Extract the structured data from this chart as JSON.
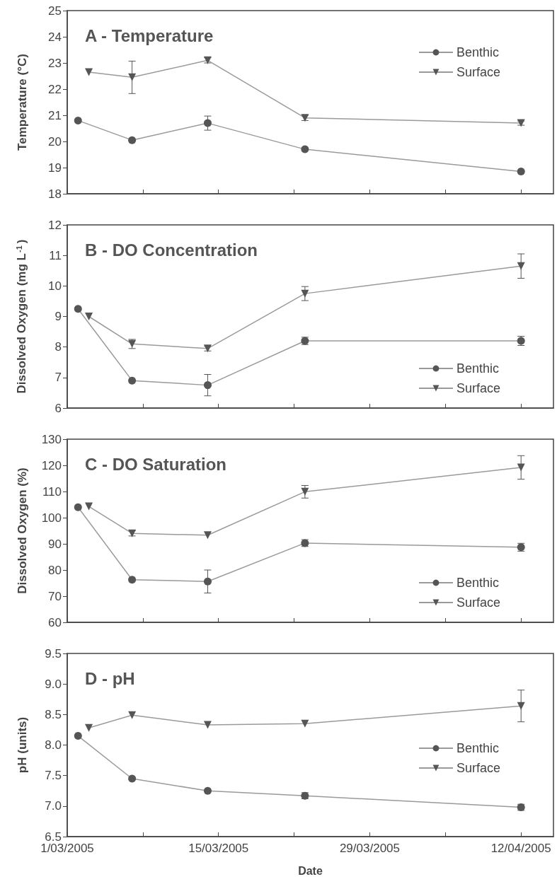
{
  "chart_data": [
    {
      "type": "line",
      "title": "A - Temperature",
      "ylabel": "Temperature (°C)",
      "legend": "top right",
      "tick_labels": "y",
      "xlim": [
        "2005-03-01",
        "2005-04-15"
      ],
      "xticks": [
        {
          "value": "2005-03-01",
          "label": null
        },
        {
          "value": "2005-03-08",
          "label": null
        },
        {
          "value": "2005-03-15",
          "label": null
        },
        {
          "value": "2005-03-22",
          "label": null
        },
        {
          "value": "2005-03-29",
          "label": null
        },
        {
          "value": "2005-04-05",
          "label": null
        },
        {
          "value": "2005-04-12",
          "label": null
        }
      ],
      "ylim": [
        18,
        25
      ],
      "yticks": [
        18,
        19,
        20,
        21,
        22,
        23,
        24,
        25
      ],
      "series": [
        {
          "name": "Benthic",
          "color": "#555555",
          "marker": "circle",
          "x": [
            "2005-03-02",
            "2005-03-07",
            "2005-03-14",
            "2005-03-23",
            "2005-04-12"
          ],
          "values": [
            20.8,
            20.05,
            20.7,
            19.7,
            18.85
          ],
          "errors": [
            null,
            null,
            0.27,
            null,
            null
          ]
        },
        {
          "name": "Surface",
          "color": "#555555",
          "marker": "triangle",
          "x": [
            "2005-03-03",
            "2005-03-07",
            "2005-03-14",
            "2005-03-23",
            "2005-04-12"
          ],
          "values": [
            22.65,
            22.45,
            23.1,
            20.9,
            20.7
          ],
          "errors": [
            null,
            0.62,
            0.1,
            0.1,
            0.08
          ]
        }
      ]
    },
    {
      "type": "line",
      "title": "B - DO Concentration",
      "ylabel": "Dissolved Oxygen (mg L$^{-1}$)",
      "legend": "bottom right",
      "tick_labels": "y",
      "xlim": [
        "2005-03-01",
        "2005-04-15"
      ],
      "xticks": [
        {
          "value": "2005-03-01",
          "label": null
        },
        {
          "value": "2005-03-08",
          "label": null
        },
        {
          "value": "2005-03-15",
          "label": null
        },
        {
          "value": "2005-03-22",
          "label": null
        },
        {
          "value": "2005-03-29",
          "label": null
        },
        {
          "value": "2005-04-05",
          "label": null
        },
        {
          "value": "2005-04-12",
          "label": null
        }
      ],
      "ylim": [
        6,
        12
      ],
      "yticks": [
        6,
        7,
        8,
        9,
        10,
        11,
        12
      ],
      "series": [
        {
          "name": "Benthic",
          "color": "#555555",
          "marker": "circle",
          "x": [
            "2005-03-02",
            "2005-03-07",
            "2005-03-14",
            "2005-03-23",
            "2005-04-12"
          ],
          "values": [
            9.25,
            6.9,
            6.75,
            8.2,
            8.2
          ],
          "errors": [
            null,
            null,
            0.35,
            0.12,
            0.15
          ]
        },
        {
          "name": "Surface",
          "color": "#555555",
          "marker": "triangle",
          "x": [
            "2005-03-03",
            "2005-03-07",
            "2005-03-14",
            "2005-03-23",
            "2005-04-12"
          ],
          "values": [
            9.0,
            8.1,
            7.95,
            9.75,
            10.65
          ],
          "errors": [
            null,
            0.15,
            0.08,
            0.23,
            0.4
          ]
        }
      ]
    },
    {
      "type": "line",
      "title": "C - DO Saturation",
      "ylabel": "Dissolved Oxygen (%)",
      "legend": "bottom right",
      "tick_labels": "y",
      "xlim": [
        "2005-03-01",
        "2005-04-15"
      ],
      "xticks": [
        {
          "value": "2005-03-01",
          "label": null
        },
        {
          "value": "2005-03-08",
          "label": null
        },
        {
          "value": "2005-03-15",
          "label": null
        },
        {
          "value": "2005-03-22",
          "label": null
        },
        {
          "value": "2005-03-29",
          "label": null
        },
        {
          "value": "2005-04-05",
          "label": null
        },
        {
          "value": "2005-04-12",
          "label": null
        }
      ],
      "ylim": [
        60,
        130
      ],
      "yticks": [
        60,
        70,
        80,
        90,
        100,
        110,
        120,
        130
      ],
      "series": [
        {
          "name": "Benthic",
          "color": "#555555",
          "marker": "circle",
          "x": [
            "2005-03-02",
            "2005-03-07",
            "2005-03-14",
            "2005-03-23",
            "2005-04-12"
          ],
          "values": [
            104,
            76.3,
            75.6,
            90.3,
            88.7
          ],
          "errors": [
            null,
            null,
            4.4,
            1.3,
            1.5
          ]
        },
        {
          "name": "Surface",
          "color": "#555555",
          "marker": "triangle",
          "x": [
            "2005-03-03",
            "2005-03-07",
            "2005-03-14",
            "2005-03-23",
            "2005-04-12"
          ],
          "values": [
            104.3,
            94,
            93.3,
            109.9,
            119.2
          ],
          "errors": [
            null,
            1,
            null,
            2.4,
            4.5
          ]
        }
      ]
    },
    {
      "type": "line",
      "title": "D - pH",
      "xlabel": "Date",
      "ylabel": "pH (units)",
      "legend": "right",
      "xlim": [
        "2005-03-01",
        "2005-04-15"
      ],
      "xticks": [
        {
          "value": "2005-03-01",
          "label": "1/03/2005"
        },
        {
          "value": "2005-03-08",
          "label": null
        },
        {
          "value": "2005-03-15",
          "label": "15/03/2005"
        },
        {
          "value": "2005-03-22",
          "label": null
        },
        {
          "value": "2005-03-29",
          "label": "29/03/2005"
        },
        {
          "value": "2005-04-05",
          "label": null
        },
        {
          "value": "2005-04-12",
          "label": "12/04/2005"
        }
      ],
      "ylim": [
        6.5,
        9.5
      ],
      "yticks": [
        6.5,
        {
          "value": 7,
          "label": "7.0"
        },
        7.5,
        {
          "value": 8,
          "label": "8.0"
        },
        8.5,
        {
          "value": 9,
          "label": "9.0"
        },
        9.5
      ],
      "series": [
        {
          "name": "Benthic",
          "color": "#555555",
          "marker": "circle",
          "x": [
            "2005-03-02",
            "2005-03-07",
            "2005-03-14",
            "2005-03-23",
            "2005-04-12"
          ],
          "values": [
            8.15,
            7.45,
            7.25,
            7.17,
            6.98
          ],
          "errors": [
            null,
            null,
            null,
            0.05,
            0.05
          ]
        },
        {
          "name": "Surface",
          "color": "#555555",
          "marker": "triangle",
          "x": [
            "2005-03-03",
            "2005-03-07",
            "2005-03-14",
            "2005-03-23",
            "2005-04-12"
          ],
          "values": [
            8.28,
            8.49,
            8.33,
            8.35,
            8.64
          ],
          "errors": [
            null,
            null,
            null,
            null,
            0.26
          ]
        }
      ]
    }
  ]
}
